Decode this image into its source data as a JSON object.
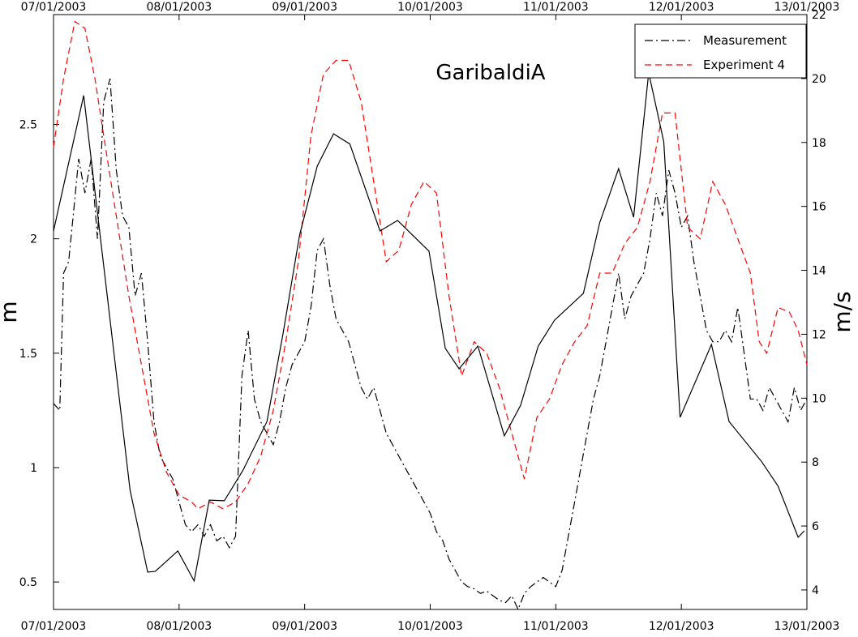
{
  "chart_data": {
    "type": "line",
    "annotation": "GaribaldiA",
    "y_label": "m",
    "y2_label": "m/s",
    "xlim": [
      0,
      6
    ],
    "xticks": [
      {
        "value": 0,
        "label": "07/01/2003"
      },
      {
        "value": 1,
        "label": "08/01/2003"
      },
      {
        "value": 2,
        "label": "09/01/2003"
      },
      {
        "value": 3,
        "label": "10/01/2003"
      },
      {
        "value": 4,
        "label": "11/01/2003"
      },
      {
        "value": 5,
        "label": "12/01/2003"
      },
      {
        "value": 6,
        "label": "13/01/2003"
      }
    ],
    "ylim": [
      0.38,
      2.98
    ],
    "yticks": [
      0.5,
      1,
      1.5,
      2,
      2.5
    ],
    "y2lim": [
      3.39,
      22
    ],
    "y2ticks": [
      4,
      6,
      8,
      10,
      12,
      14,
      16,
      18,
      20,
      22
    ],
    "legend": "upper right",
    "series": [
      {
        "name": "Measurement",
        "color": "#000000",
        "linestyle": "dashdot",
        "x": [
          0,
          0.05,
          0.08,
          0.12,
          0.16,
          0.2,
          0.25,
          0.3,
          0.35,
          0.4,
          0.45,
          0.5,
          0.55,
          0.6,
          0.65,
          0.7,
          0.75,
          0.8,
          0.85,
          0.9,
          0.95,
          1,
          1.05,
          1.1,
          1.15,
          1.2,
          1.25,
          1.3,
          1.35,
          1.4,
          1.45,
          1.5,
          1.55,
          1.6,
          1.65,
          1.7,
          1.75,
          1.8,
          1.85,
          1.9,
          1.95,
          2,
          2.05,
          2.1,
          2.15,
          2.2,
          2.25,
          2.3,
          2.35,
          2.4,
          2.45,
          2.5,
          2.55,
          2.6,
          2.65,
          2.7,
          2.75,
          2.8,
          2.85,
          2.9,
          2.95,
          3,
          3.05,
          3.1,
          3.15,
          3.2,
          3.25,
          3.3,
          3.35,
          3.4,
          3.45,
          3.5,
          3.55,
          3.6,
          3.65,
          3.7,
          3.75,
          3.8,
          3.85,
          3.9,
          3.95,
          4,
          4.05,
          4.1,
          4.15,
          4.2,
          4.25,
          4.3,
          4.35,
          4.4,
          4.45,
          4.5,
          4.55,
          4.6,
          4.65,
          4.7,
          4.75,
          4.8,
          4.85,
          4.9,
          4.95,
          5,
          5.05,
          5.1,
          5.15,
          5.2,
          5.25,
          5.3,
          5.35,
          5.4,
          5.45,
          5.5,
          5.55,
          5.6,
          5.65,
          5.7,
          5.75,
          5.8,
          5.85,
          5.9,
          5.95,
          6
        ],
        "values": [
          1.28,
          1.25,
          1.85,
          1.9,
          2.12,
          2.35,
          2.2,
          2.35,
          2,
          2.6,
          2.7,
          2.3,
          2.1,
          2.05,
          1.75,
          1.85,
          1.55,
          1.2,
          1.05,
          1,
          0.95,
          0.85,
          0.75,
          0.72,
          0.75,
          0.7,
          0.75,
          0.68,
          0.7,
          0.65,
          0.7,
          1.4,
          1.6,
          1.3,
          1.2,
          1.15,
          1.1,
          1.2,
          1.35,
          1.45,
          1.5,
          1.55,
          1.7,
          1.95,
          2,
          1.8,
          1.65,
          1.6,
          1.55,
          1.45,
          1.35,
          1.3,
          1.35,
          1.25,
          1.15,
          1.1,
          1.05,
          1,
          0.95,
          0.9,
          0.85,
          0.8,
          0.72,
          0.68,
          0.6,
          0.55,
          0.5,
          0.48,
          0.47,
          0.45,
          0.46,
          0.44,
          0.42,
          0.41,
          0.44,
          0.38,
          0.45,
          0.48,
          0.5,
          0.52,
          0.5,
          0.48,
          0.55,
          0.7,
          0.85,
          1,
          1.15,
          1.3,
          1.4,
          1.55,
          1.7,
          1.85,
          1.65,
          1.75,
          1.8,
          1.85,
          2,
          2.2,
          2.1,
          2.3,
          2.2,
          2.05,
          2.1,
          1.9,
          1.75,
          1.6,
          1.55,
          1.55,
          1.6,
          1.55,
          1.7,
          1.5,
          1.3,
          1.3,
          1.25,
          1.35,
          1.3,
          1.25,
          1.2,
          1.35,
          1.25,
          1.3
        ]
      },
      {
        "name": "Experiment 4",
        "color": "#ff0000",
        "linestyle": "dashed",
        "x": [
          0,
          0.08,
          0.17,
          0.25,
          0.33,
          0.4,
          0.5,
          0.6,
          0.7,
          0.8,
          0.9,
          1,
          1.1,
          1.15,
          1.25,
          1.35,
          1.45,
          1.55,
          1.65,
          1.75,
          1.85,
          1.95,
          2.05,
          2.15,
          2.25,
          2.35,
          2.45,
          2.55,
          2.65,
          2.75,
          2.85,
          2.95,
          3.05,
          3.15,
          3.25,
          3.35,
          3.45,
          3.55,
          3.65,
          3.75,
          3.85,
          3.95,
          4.05,
          4.15,
          4.25,
          4.35,
          4.45,
          4.55,
          4.65,
          4.75,
          4.85,
          4.95,
          5.05,
          5.15,
          5.25,
          5.35,
          5.45,
          5.55,
          5.62,
          5.68,
          5.77,
          5.86,
          5.93,
          6
        ],
        "values": [
          2.4,
          2.7,
          2.95,
          2.92,
          2.7,
          2.45,
          2.1,
          1.75,
          1.45,
          1.15,
          0.98,
          0.88,
          0.85,
          0.82,
          0.85,
          0.82,
          0.85,
          0.93,
          1.05,
          1.25,
          1.55,
          1.9,
          2.45,
          2.72,
          2.78,
          2.78,
          2.6,
          2.25,
          1.9,
          1.95,
          2.15,
          2.25,
          2.2,
          1.75,
          1.4,
          1.55,
          1.5,
          1.35,
          1.15,
          0.95,
          1.22,
          1.3,
          1.45,
          1.55,
          1.62,
          1.85,
          1.85,
          1.98,
          2.05,
          2.25,
          2.55,
          2.55,
          2.05,
          2,
          2.25,
          2.15,
          2,
          1.85,
          1.55,
          1.5,
          1.7,
          1.68,
          1.6,
          1.45
        ]
      },
      {
        "color": "#000000",
        "linestyle": "solid",
        "axis": "y2",
        "x": [
          0,
          0.24,
          0.61,
          0.75,
          0.81,
          0.99,
          1.12,
          1.24,
          1.36,
          1.51,
          1.7,
          1.83,
          1.96,
          2.1,
          2.23,
          2.36,
          2.6,
          2.74,
          2.99,
          3.12,
          3.23,
          3.38,
          3.59,
          3.72,
          3.86,
          3.99,
          4.22,
          4.35,
          4.5,
          4.62,
          4.74,
          4.86,
          4.99,
          5.24,
          5.38,
          5.64,
          5.77,
          5.93,
          5.98
        ],
        "values": [
          15.23,
          19.47,
          7.12,
          4.56,
          4.58,
          5.22,
          4.28,
          6.81,
          6.79,
          7.75,
          9.27,
          12.06,
          15.11,
          17.26,
          18.27,
          17.95,
          15.23,
          15.56,
          14.6,
          11.56,
          10.92,
          11.63,
          8.82,
          9.78,
          11.63,
          12.44,
          13.28,
          15.49,
          17.18,
          15.66,
          20.18,
          18.02,
          9.4,
          11.68,
          9.27,
          8.01,
          7.25,
          5.65,
          5.85
        ]
      }
    ]
  }
}
